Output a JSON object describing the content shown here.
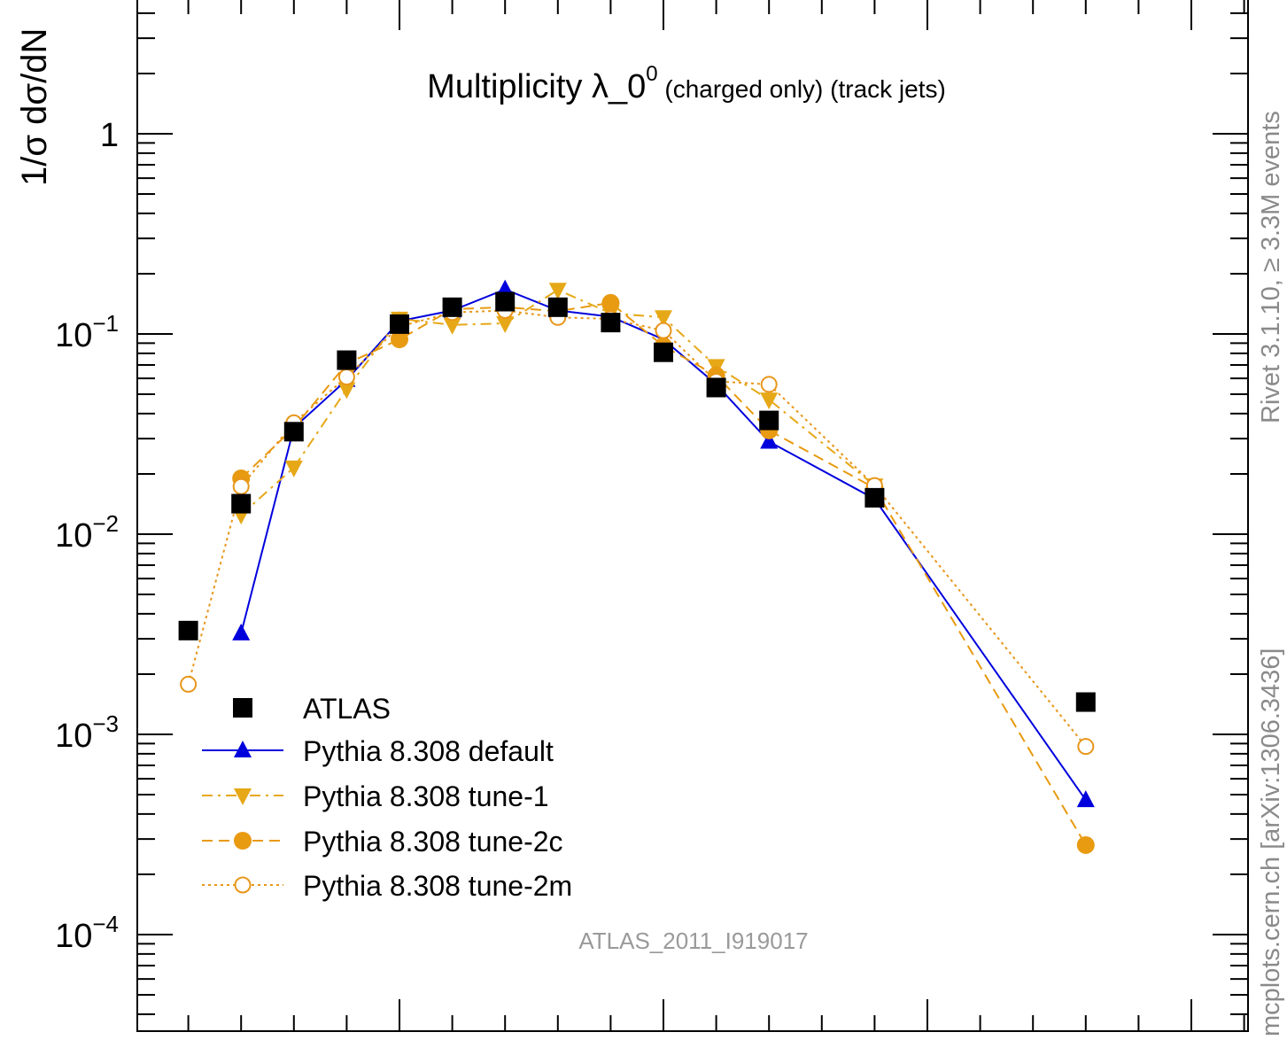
{
  "chart_data": {
    "type": "line",
    "title_main": "Multiplicity λ_0",
    "title_sup": "0",
    "title_suffix": " (charged only) (track jets)",
    "ylabel": "1/σ dσ/dN",
    "analysis_label": "ATLAS_2011_I919017",
    "y_scale": "log",
    "ylim": [
      4e-05,
      4.5
    ],
    "xlim": [
      0,
      21
    ],
    "y_tick_labels": [
      {
        "value": 1,
        "base": "1",
        "exp": ""
      },
      {
        "value": 0.1,
        "base": "10",
        "exp": "−1"
      },
      {
        "value": 0.01,
        "base": "10",
        "exp": "−2"
      },
      {
        "value": 0.001,
        "base": "10",
        "exp": "−3"
      },
      {
        "value": 0.0001,
        "base": "10",
        "exp": "−4"
      }
    ],
    "legend_position": "bottom-left",
    "series": [
      {
        "name": "ATLAS",
        "color": "#000000",
        "marker": "square",
        "line": "none",
        "x": [
          1,
          2,
          3,
          4,
          5,
          6,
          7,
          8,
          9,
          10,
          11,
          12,
          14,
          18
        ],
        "y": [
          0.0033,
          0.0142,
          0.0325,
          0.074,
          0.112,
          0.136,
          0.145,
          0.136,
          0.114,
          0.081,
          0.054,
          0.037,
          0.0152,
          0.00145
        ]
      },
      {
        "name": "Pythia 8.308 default",
        "color": "#0000dd",
        "marker": "triangle-up",
        "line": "solid",
        "x": [
          2,
          3,
          4,
          5,
          6,
          7,
          8,
          9,
          10,
          11,
          12,
          14,
          18
        ],
        "y": [
          0.0032,
          0.034,
          0.059,
          0.116,
          0.131,
          0.167,
          0.131,
          0.122,
          0.094,
          0.056,
          0.029,
          0.015,
          0.00047
        ]
      },
      {
        "name": "Pythia 8.308 tune-1",
        "color": "#e6a817",
        "marker": "triangle-down",
        "line": "dashdot",
        "x": [
          2,
          3,
          4,
          5,
          6,
          7,
          8,
          9,
          10,
          11,
          12,
          14
        ],
        "y": [
          0.0125,
          0.0215,
          0.053,
          0.119,
          0.111,
          0.113,
          0.166,
          0.127,
          0.121,
          0.069,
          0.047,
          0.0175
        ]
      },
      {
        "name": "Pythia 8.308 tune-2c",
        "color": "#e89a10",
        "marker": "circle",
        "line": "dashed",
        "x": [
          2,
          3,
          4,
          5,
          6,
          7,
          8,
          9,
          10,
          11,
          12,
          14,
          18
        ],
        "y": [
          0.019,
          0.034,
          0.071,
          0.094,
          0.133,
          0.136,
          0.13,
          0.143,
          0.087,
          0.062,
          0.033,
          0.017,
          0.00028
        ]
      },
      {
        "name": "Pythia 8.308 tune-2m",
        "color": "#e8961a",
        "marker": "open-circle",
        "line": "dotted",
        "x": [
          1,
          2,
          3,
          4,
          5,
          6,
          7,
          8,
          9,
          10,
          11,
          12,
          14,
          18
        ],
        "y": [
          0.00178,
          0.0173,
          0.036,
          0.061,
          0.109,
          0.128,
          0.131,
          0.121,
          0.119,
          0.104,
          0.058,
          0.056,
          0.0175,
          0.00087
        ]
      }
    ]
  },
  "side_labels": {
    "rivet": "Rivet 3.1.10, ≥ 3.3M events",
    "source": "mcplots.cern.ch [arXiv:1306.3436]"
  }
}
